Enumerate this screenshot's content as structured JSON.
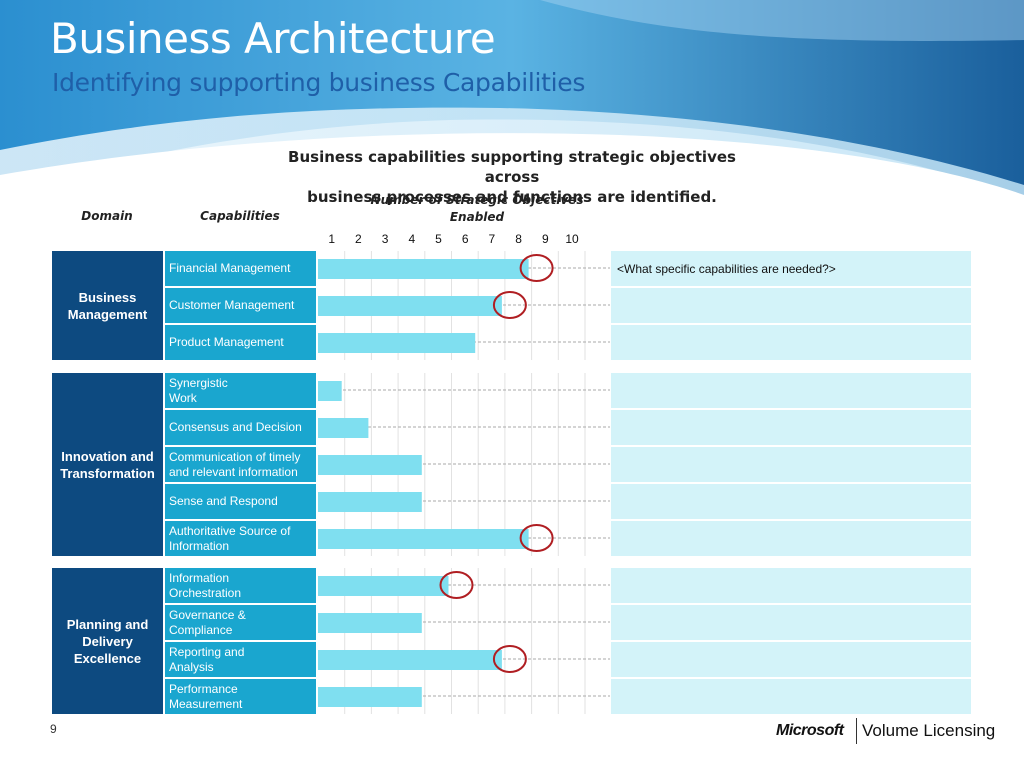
{
  "slide": {
    "title": "Business Architecture",
    "subtitle": "Identifying supporting business Capabilities",
    "intro_line1": "Business capabilities supporting strategic objectives across",
    "intro_line2": "business processes and functions are identified.",
    "col_domain": "Domain",
    "col_capabilities": "Capabilities",
    "col_chart_line1": "Number of Strategic Objectives",
    "col_chart_line2": "Enabled",
    "note": "<What specific capabilities are needed?>",
    "page_number": "9",
    "logo_brand": "Microsoft",
    "logo_product": "Volume Licensing"
  },
  "colors": {
    "domain_bg": "#0d4a80",
    "capability_bg": "#1aa6cf",
    "bar": "#7fdff0",
    "note_bg": "#d3f3f9",
    "highlight_circle": "#b01e22"
  },
  "chart_data": {
    "type": "bar",
    "orientation": "horizontal",
    "title": "Number of Strategic Objectives Enabled",
    "xlim": [
      0,
      10
    ],
    "x_ticks": [
      "1",
      "2",
      "3",
      "4",
      "5",
      "6",
      "7",
      "8",
      "9",
      "10"
    ],
    "grid": true,
    "groups": [
      {
        "domain_line1": "Business",
        "domain_line2": "Management",
        "rows": [
          {
            "cap_line1": "Financial Management",
            "cap_line2": "",
            "value": 8,
            "highlight": true
          },
          {
            "cap_line1": "Customer Management",
            "cap_line2": "",
            "value": 7,
            "highlight": true
          },
          {
            "cap_line1": "Product Management",
            "cap_line2": "",
            "value": 6,
            "highlight": false
          }
        ]
      },
      {
        "domain_line1": "Innovation and",
        "domain_line2": "Transformation",
        "rows": [
          {
            "cap_line1": "Synergistic",
            "cap_line2": "Work",
            "value": 1,
            "highlight": false
          },
          {
            "cap_line1": "Consensus and Decision",
            "cap_line2": "",
            "value": 2,
            "highlight": false
          },
          {
            "cap_line1": "Communication of timely",
            "cap_line2": "and relevant information",
            "value": 4,
            "highlight": false
          },
          {
            "cap_line1": "Sense and Respond",
            "cap_line2": "",
            "value": 4,
            "highlight": false
          },
          {
            "cap_line1": "Authoritative Source of",
            "cap_line2": "Information",
            "value": 8,
            "highlight": true
          }
        ]
      },
      {
        "domain_line1": "Planning and",
        "domain_line2": "Delivery",
        "domain_line3": "Excellence",
        "rows": [
          {
            "cap_line1": "Information",
            "cap_line2": "Orchestration",
            "value": 5,
            "highlight": true
          },
          {
            "cap_line1": "Governance &",
            "cap_line2": "Compliance",
            "value": 4,
            "highlight": false
          },
          {
            "cap_line1": "Reporting and",
            "cap_line2": "Analysis",
            "value": 7,
            "highlight": true
          },
          {
            "cap_line1": "Performance",
            "cap_line2": "Measurement",
            "value": 4,
            "highlight": false
          }
        ]
      }
    ]
  }
}
